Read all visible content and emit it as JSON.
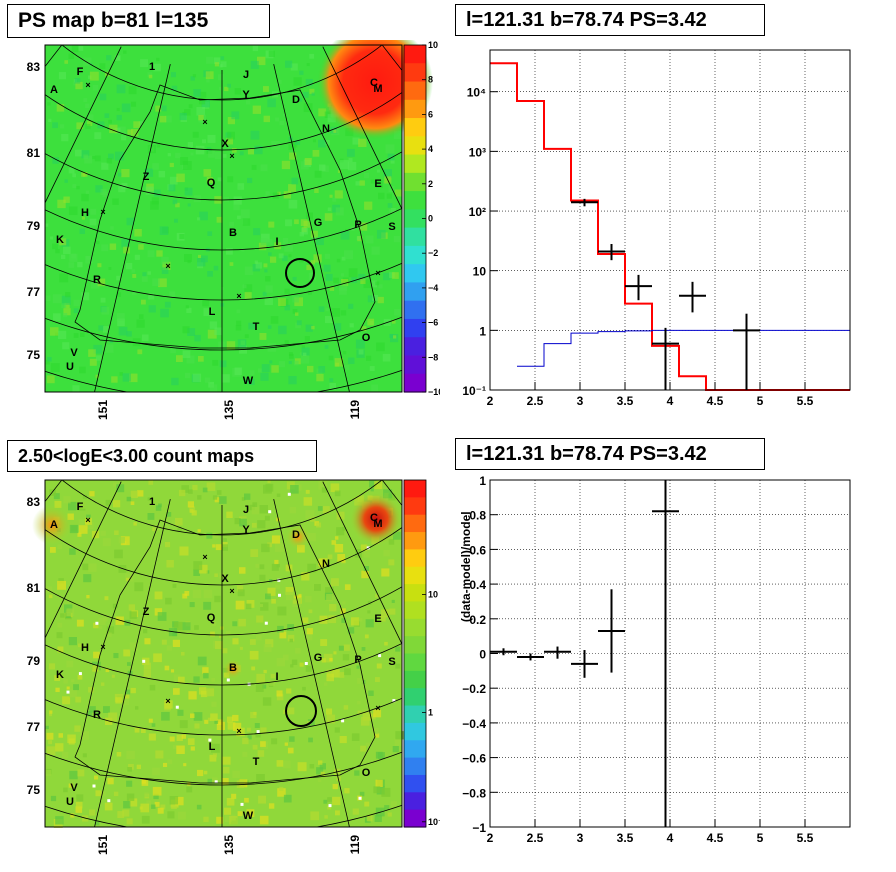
{
  "panels": {
    "ps_map": {
      "title": "PS map b=81 l=135",
      "y_ticks": [
        "83",
        "81",
        "79",
        "77",
        "75"
      ],
      "x_ticks": [
        "151",
        "135",
        "119"
      ],
      "colorbar_ticks": [
        "10",
        "8",
        "6",
        "4",
        "2",
        "0",
        "−2",
        "−4",
        "−6",
        "−8",
        "−10"
      ],
      "letters": [
        "A",
        "F",
        "J",
        "Y",
        "D",
        "C",
        "M",
        "N",
        "X",
        "Z",
        "Q",
        "E",
        "H",
        "B",
        "G",
        "P",
        "S",
        "K",
        "I",
        "R",
        "L",
        "T",
        "O",
        "V",
        "U",
        "W",
        "1"
      ]
    },
    "count_map": {
      "title": "2.50<logE<3.00 count maps",
      "y_ticks": [
        "83",
        "81",
        "79",
        "77",
        "75"
      ],
      "x_ticks": [
        "151",
        "135",
        "119"
      ],
      "colorbar_ticks": [
        "10",
        "1",
        "10⁻¹"
      ],
      "letters": [
        "A",
        "F",
        "J",
        "Y",
        "D",
        "C",
        "M",
        "N",
        "X",
        "Z",
        "Q",
        "E",
        "H",
        "B",
        "G",
        "P",
        "S",
        "K",
        "I",
        "R",
        "L",
        "T",
        "O",
        "V",
        "U",
        "W",
        "1"
      ]
    },
    "spectrum": {
      "title": "l=121.31 b=78.74 PS=3.42"
    },
    "residual": {
      "title": "l=121.31 b=78.74 PS=3.42"
    }
  },
  "chart_data": [
    {
      "type": "heatmap",
      "title": "PS map b=81 l=135",
      "ylabel_ticks": [
        83,
        81,
        79,
        77,
        75
      ],
      "xlabel_ticks": [
        151,
        135,
        119
      ],
      "colorbar_range": [
        -10,
        10
      ],
      "colors": {
        "low": "#7a00d0",
        "mid": "#33e033",
        "high": "#ff2010"
      }
    },
    {
      "type": "line",
      "title": "l=121.31 b=78.74 PS=3.42",
      "yscale": "log",
      "xlim": [
        2,
        6
      ],
      "ylim": [
        0.1,
        50000
      ],
      "x_ticks": [
        "2",
        "2.5",
        "3",
        "3.5",
        "4",
        "4.5",
        "5",
        "5.5"
      ],
      "y_ticks": [
        "10⁻¹",
        "1",
        "10",
        "10²",
        "10³",
        "10⁴"
      ],
      "grid": true,
      "series": [
        {
          "kind": "step",
          "color": "#ff0000",
          "edges": [
            2.0,
            2.3,
            2.6,
            2.9,
            3.2,
            3.5,
            3.8,
            4.1,
            4.4,
            6.0
          ],
          "values": [
            30000,
            7000,
            1100,
            150,
            19,
            2.8,
            0.55,
            0.17,
            0.1
          ]
        },
        {
          "kind": "step",
          "color": "#0000cc",
          "edges": [
            2.3,
            2.6,
            2.9,
            3.2,
            3.5,
            3.8,
            4.1,
            4.4,
            6.0
          ],
          "values": [
            0.25,
            0.6,
            0.9,
            0.95,
            0.98,
            1.0,
            1.0,
            1.0
          ]
        },
        {
          "kind": "errorbar",
          "color": "#000000",
          "points": [
            {
              "x": 3.05,
              "xerr": 0.15,
              "y": 140,
              "ylo": 120,
              "yhi": 160
            },
            {
              "x": 3.35,
              "xerr": 0.15,
              "y": 21,
              "ylo": 15,
              "yhi": 28
            },
            {
              "x": 3.65,
              "xerr": 0.15,
              "y": 5.5,
              "ylo": 3.2,
              "yhi": 8.5
            },
            {
              "x": 3.95,
              "xerr": 0.15,
              "y": 0.6,
              "ylo": 0.1,
              "yhi": 1.1
            },
            {
              "x": 4.25,
              "xerr": 0.15,
              "y": 3.8,
              "ylo": 2.0,
              "yhi": 6.5
            },
            {
              "x": 4.85,
              "xerr": 0.15,
              "y": 1.0,
              "ylo": 0.1,
              "yhi": 1.9
            }
          ]
        }
      ]
    },
    {
      "type": "heatmap",
      "title": "2.50<logE<3.00 count maps",
      "ylabel_ticks": [
        83,
        81,
        79,
        77,
        75
      ],
      "xlabel_ticks": [
        151,
        135,
        119
      ],
      "colorbar_scale": "log",
      "colorbar_ticks": [
        "10",
        "1",
        "10⁻¹"
      ]
    },
    {
      "type": "scatter",
      "title": "l=121.31 b=78.74 PS=3.42",
      "ylabel": "(data-model)/model",
      "xlim": [
        2,
        6
      ],
      "ylim": [
        -1,
        1
      ],
      "x_ticks": [
        "2",
        "2.5",
        "3",
        "3.5",
        "4",
        "4.5",
        "5",
        "5.5"
      ],
      "y_ticks": [
        "1",
        "0.8",
        "0.6",
        "0.4",
        "0.2",
        "0",
        "−0.2",
        "−0.4",
        "−0.6",
        "−0.8",
        "−1"
      ],
      "grid": true,
      "points": [
        {
          "x": 2.15,
          "xerr": 0.15,
          "y": 0.01,
          "ylo": -0.01,
          "yhi": 0.03
        },
        {
          "x": 2.45,
          "xerr": 0.15,
          "y": -0.02,
          "ylo": -0.04,
          "yhi": 0.0
        },
        {
          "x": 2.75,
          "xerr": 0.15,
          "y": 0.01,
          "ylo": -0.03,
          "yhi": 0.04
        },
        {
          "x": 3.05,
          "xerr": 0.15,
          "y": -0.06,
          "ylo": -0.14,
          "yhi": 0.02
        },
        {
          "x": 3.35,
          "xerr": 0.15,
          "y": 0.13,
          "ylo": -0.11,
          "yhi": 0.37
        },
        {
          "x": 3.95,
          "xerr": 0.15,
          "y": 0.82,
          "ylo": -1.0,
          "yhi": 1.0
        }
      ]
    }
  ]
}
